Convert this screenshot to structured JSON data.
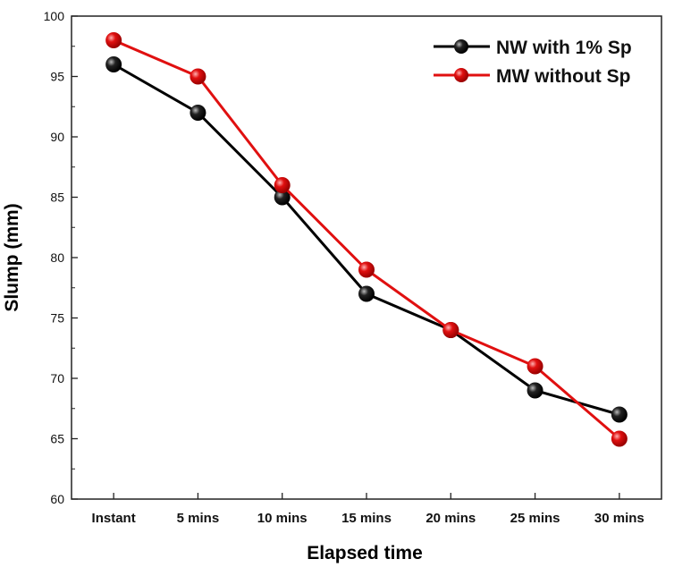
{
  "chart_data": {
    "type": "line",
    "title": "",
    "xlabel": "Elapsed time",
    "ylabel": "Slump (mm)",
    "categories": [
      "Instant",
      "5 mins",
      "10 mins",
      "15 mins",
      "20 mins",
      "25 mins",
      "30 mins"
    ],
    "ylim": [
      60,
      100
    ],
    "yticks": [
      60,
      65,
      70,
      75,
      80,
      85,
      90,
      95,
      100
    ],
    "grid": false,
    "legend_position": "top-right",
    "series": [
      {
        "name": "NW with 1% Sp",
        "color": "#000000",
        "values": [
          96,
          92,
          85,
          77,
          74,
          69,
          67
        ]
      },
      {
        "name": "MW without Sp",
        "color": "#e01010",
        "values": [
          98,
          95,
          86,
          79,
          74,
          71,
          65
        ]
      }
    ]
  }
}
